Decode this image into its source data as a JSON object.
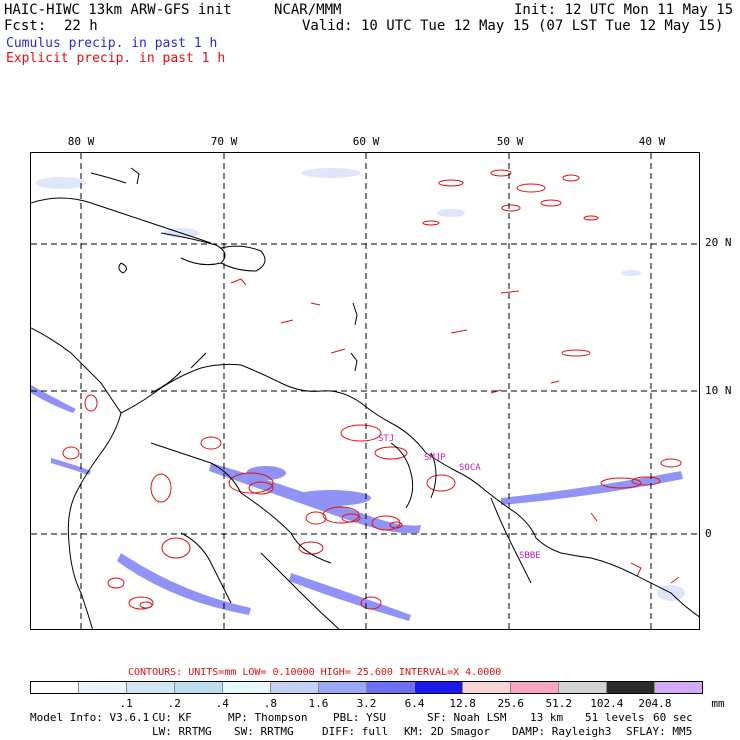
{
  "header": {
    "model": "HAIC-HIWC 13km ARW-GFS init",
    "org": "NCAR/MMM",
    "init": "Init: 12 UTC Mon 11 May 15",
    "fcst_label": "Fcst:",
    "fcst_value": "22 h",
    "valid": "Valid: 10 UTC Tue 12 May 15 (07 LST Tue 12 May 15)"
  },
  "legend": {
    "cumulus": "Cumulus precip. in past 1 h",
    "explicit": "Explicit precip. in past 1 h",
    "cumulus_color": "#2a2ad8",
    "explicit_color": "#e01010"
  },
  "axes": {
    "lon_labels": [
      "80 W",
      "70 W",
      "60 W",
      "50 W",
      "40 W"
    ],
    "lat_labels": [
      "20 N",
      "10 N",
      "0"
    ]
  },
  "stations": [
    "STJ",
    "SMJP",
    "SOCA",
    "SBBE"
  ],
  "contours": {
    "text": "CONTOURS:  UNITS=mm  LOW=  0.10000      HIGH=  25.600      INTERVAL=X  4.0000"
  },
  "colorbar": {
    "colors": [
      "#ffffff",
      "#eaf4fa",
      "#d2e6f4",
      "#bcdcf0",
      "#e6f8f8",
      "#c4d0f6",
      "#9aa8f4",
      "#6c70f2",
      "#1a1af0",
      "#f6d6d6",
      "#f8a6c4",
      "#d4d4d4",
      "#2c2c2c",
      "#d4aaf8"
    ],
    "labels": [
      ".1",
      ".2",
      ".4",
      ".8",
      "1.6",
      "3.2",
      "6.4",
      "12.8",
      "25.6",
      "51.2",
      "102.4",
      "204.8"
    ],
    "unit": "mm"
  },
  "footer": {
    "line1": [
      "Model Info: V3.6.1",
      "CU: KF",
      "MP: Thompson",
      "PBL: YSU",
      "SF: Noah LSM",
      "13 km",
      "51 levels",
      "60 sec"
    ],
    "line2": [
      "LW: RRTMG",
      "SW: RRTMG",
      "DIFF: full",
      "KM: 2D Smagor",
      "DAMP: Rayleigh3",
      "SFLAY: MM5"
    ]
  }
}
